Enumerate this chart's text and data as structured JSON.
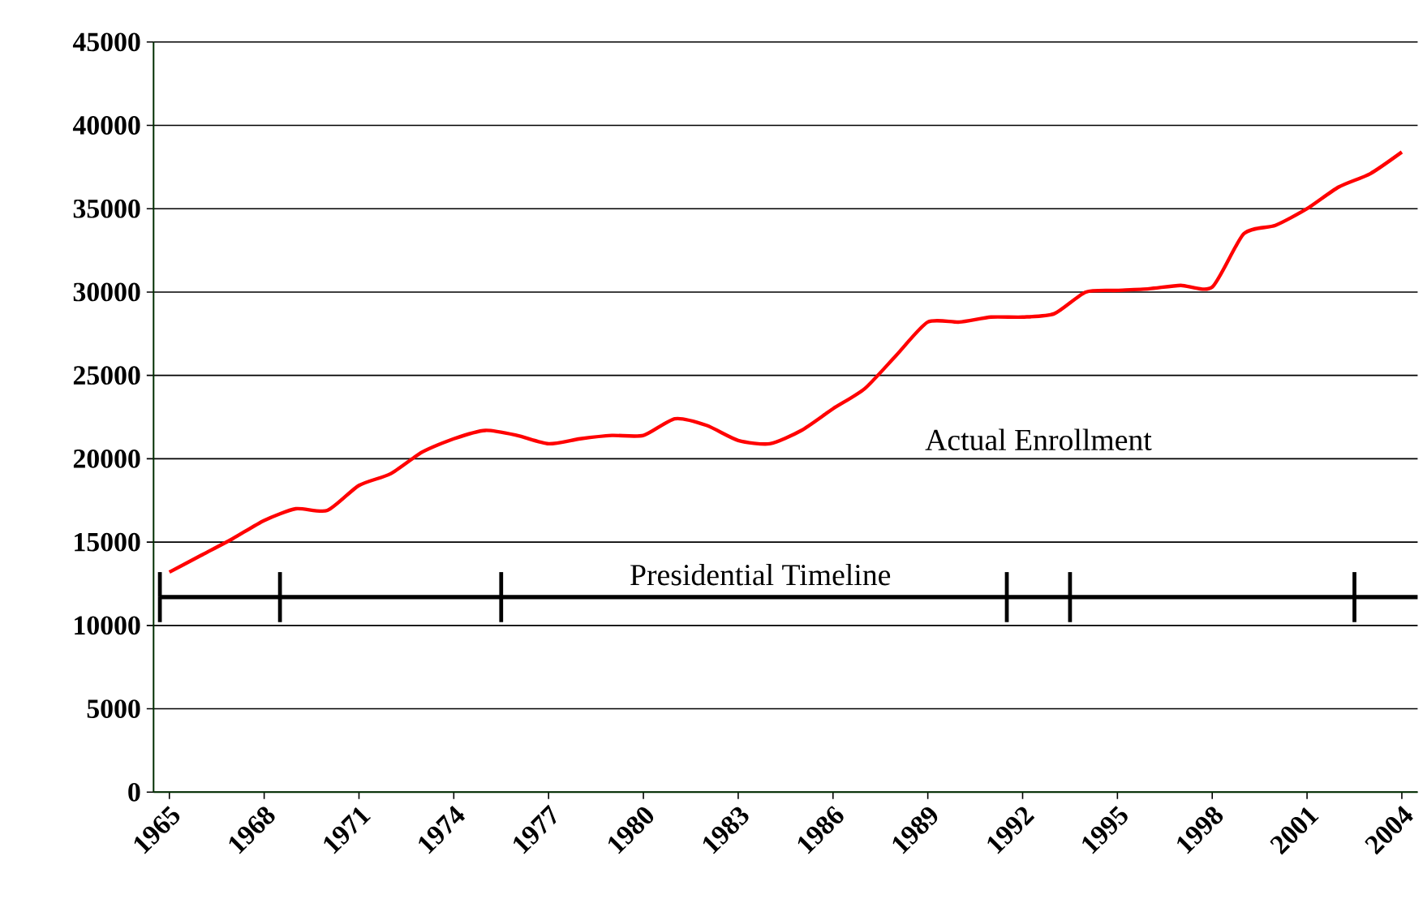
{
  "chart_data": {
    "type": "line",
    "xlim": [
      1964.5,
      2004.5
    ],
    "ylim": [
      0,
      45000
    ],
    "xticks": [
      1965,
      1968,
      1971,
      1974,
      1977,
      1980,
      1983,
      1986,
      1989,
      1992,
      1995,
      1998,
      2001,
      2004
    ],
    "yticks": [
      0,
      5000,
      10000,
      15000,
      20000,
      25000,
      30000,
      35000,
      40000,
      45000
    ],
    "grid": "y",
    "line_style": "solid",
    "marker": "none",
    "series": [
      {
        "name": "Actual Enrollment",
        "color": "#ff0000",
        "x": [
          1965,
          1966,
          1967,
          1968,
          1969,
          1970,
          1971,
          1972,
          1973,
          1974,
          1975,
          1976,
          1977,
          1978,
          1979,
          1980,
          1981,
          1982,
          1983,
          1984,
          1985,
          1986,
          1987,
          1988,
          1989,
          1990,
          1991,
          1992,
          1993,
          1994,
          1995,
          1996,
          1997,
          1998,
          1999,
          2000,
          2001,
          2002,
          2003,
          2004
        ],
        "values": [
          13200,
          14200,
          15200,
          16300,
          17000,
          16900,
          18400,
          19100,
          20400,
          21200,
          21700,
          21400,
          20900,
          21200,
          21400,
          21400,
          22400,
          22000,
          21100,
          20900,
          21700,
          23000,
          24200,
          26200,
          28200,
          28200,
          28500,
          28500,
          28700,
          30000,
          30100,
          30200,
          30400,
          30300,
          33500,
          34000,
          35000,
          36300,
          37100,
          38400
        ]
      },
      {
        "name": "Presidential Timeline",
        "color": "#000000",
        "x": [
          1964.7,
          1968.5,
          1975.5,
          1991.5,
          1993.5,
          2002.5,
          2004.5
        ],
        "values": [
          11700,
          11700,
          11700,
          11700,
          11700,
          11700,
          11700
        ],
        "errors": [
          1500,
          1500,
          1500,
          1500,
          1500,
          1500,
          null
        ]
      }
    ]
  }
}
